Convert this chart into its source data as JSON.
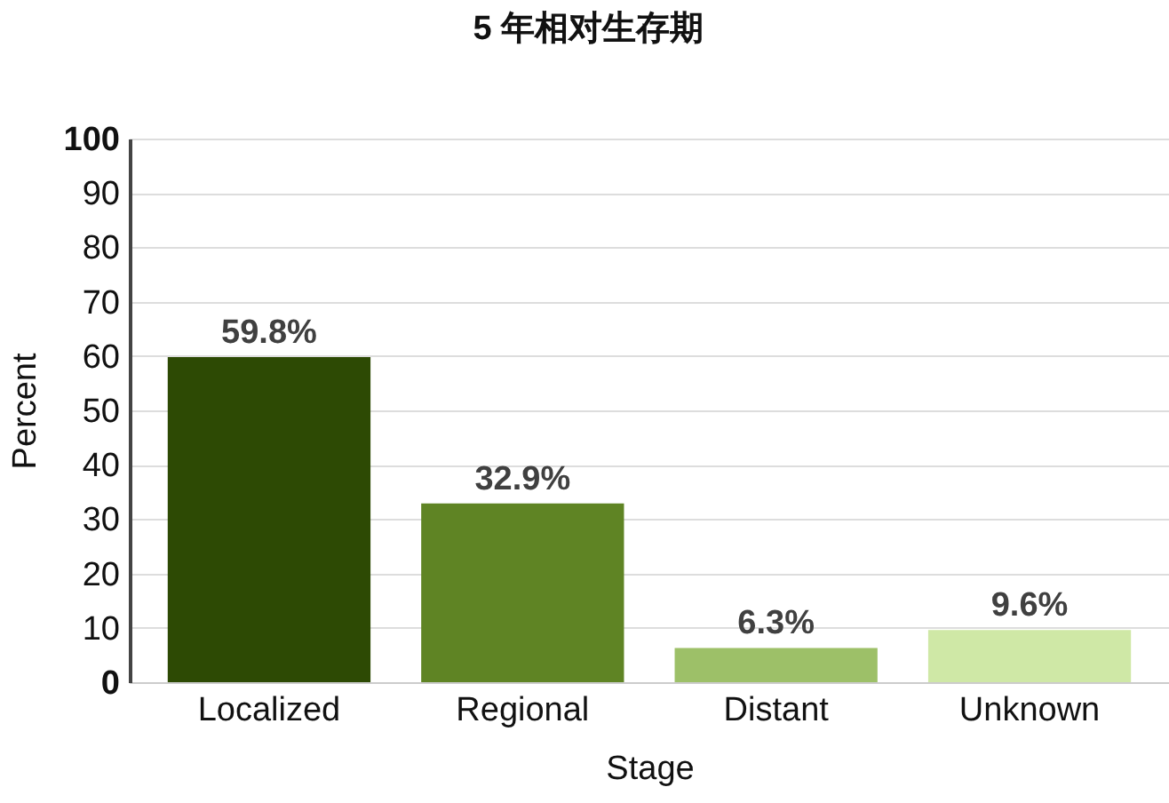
{
  "chart_data": {
    "type": "bar",
    "title": "5 年相对生存期",
    "xlabel": "Stage",
    "ylabel": "Percent",
    "categories": [
      "Localized",
      "Regional",
      "Distant",
      "Unknown"
    ],
    "values": [
      59.8,
      32.9,
      6.3,
      9.6
    ],
    "colors": [
      "#2d4a04",
      "#5f8424",
      "#9dc068",
      "#cfe8a6"
    ],
    "value_labels": [
      "59.8%",
      "32.9%",
      "6.3%",
      "9.6%"
    ],
    "ylim": [
      0,
      100
    ],
    "yticks": [
      0,
      10,
      20,
      30,
      40,
      50,
      60,
      70,
      80,
      90,
      100
    ],
    "grid": "y"
  }
}
